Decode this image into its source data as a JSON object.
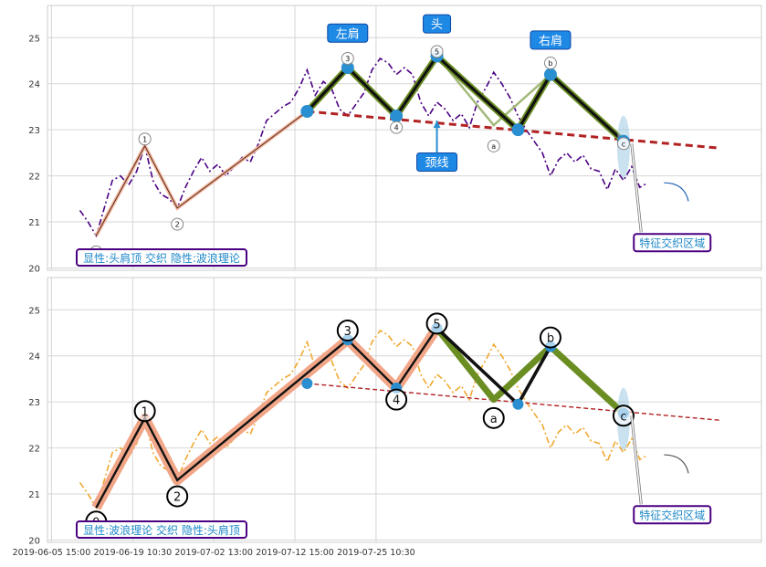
{
  "chart_data": [
    {
      "type": "line",
      "panel": "top",
      "ylim": [
        19.95,
        25.7
      ],
      "yticks": [
        20,
        21,
        22,
        23,
        24,
        25
      ],
      "grid": true,
      "price_series": {
        "style": "dash-dot",
        "color": "#4B0082",
        "points": [
          [
            0,
            21.25
          ],
          [
            1,
            21.0
          ],
          [
            2,
            20.7
          ],
          [
            3,
            21.3
          ],
          [
            4,
            21.9
          ],
          [
            5,
            22.0
          ],
          [
            6,
            21.8
          ],
          [
            7,
            22.1
          ],
          [
            8,
            22.65
          ],
          [
            9,
            21.9
          ],
          [
            10,
            21.6
          ],
          [
            11,
            21.5
          ],
          [
            12,
            21.3
          ],
          [
            13,
            21.75
          ],
          [
            14,
            22.1
          ],
          [
            15,
            22.4
          ],
          [
            16,
            22.1
          ],
          [
            17,
            22.25
          ],
          [
            18,
            22.0
          ],
          [
            19,
            22.2
          ],
          [
            20,
            22.4
          ],
          [
            21,
            22.3
          ],
          [
            22,
            22.7
          ],
          [
            23,
            23.2
          ],
          [
            24,
            23.35
          ],
          [
            25,
            23.5
          ],
          [
            26,
            23.6
          ],
          [
            27,
            23.9
          ],
          [
            28,
            24.3
          ],
          [
            29,
            23.75
          ],
          [
            30,
            24.05
          ],
          [
            31,
            23.9
          ],
          [
            32,
            23.45
          ],
          [
            33,
            23.3
          ],
          [
            34,
            23.55
          ],
          [
            35,
            23.8
          ],
          [
            36,
            24.3
          ],
          [
            37,
            24.55
          ],
          [
            38,
            24.45
          ],
          [
            39,
            24.2
          ],
          [
            40,
            24.35
          ],
          [
            41,
            24.2
          ],
          [
            42,
            23.6
          ],
          [
            43,
            23.3
          ],
          [
            44,
            23.6
          ],
          [
            45,
            23.45
          ],
          [
            46,
            23.2
          ],
          [
            47,
            23.35
          ],
          [
            48,
            23.05
          ],
          [
            49,
            23.6
          ],
          [
            50,
            23.9
          ],
          [
            51,
            24.25
          ],
          [
            52,
            24.0
          ],
          [
            53,
            23.7
          ],
          [
            54,
            23.3
          ],
          [
            55,
            23.0
          ],
          [
            56,
            22.75
          ],
          [
            57,
            22.5
          ],
          [
            58,
            22.0
          ],
          [
            59,
            22.35
          ],
          [
            60,
            22.5
          ],
          [
            61,
            22.3
          ],
          [
            62,
            22.45
          ],
          [
            63,
            22.15
          ],
          [
            64,
            22.1
          ],
          [
            65,
            21.7
          ],
          [
            66,
            22.15
          ],
          [
            67,
            21.9
          ],
          [
            68,
            22.2
          ],
          [
            69,
            21.75
          ],
          [
            70,
            21.85
          ]
        ]
      },
      "wave_path": {
        "style": "thin tan band with dark line",
        "points": [
          [
            2,
            20.7
          ],
          [
            8,
            22.65
          ],
          [
            12,
            21.3
          ],
          [
            28,
            23.4
          ]
        ]
      },
      "zigzag_green": [
        [
          28,
          23.4
        ],
        [
          33,
          24.35
        ],
        [
          39,
          23.3
        ],
        [
          44,
          24.6
        ],
        [
          54,
          23.0
        ],
        [
          58,
          24.2
        ],
        [
          67,
          22.75
        ]
      ],
      "zigzag_black": [
        [
          28,
          23.4
        ],
        [
          33,
          24.35
        ],
        [
          39,
          23.3
        ],
        [
          44,
          24.6
        ],
        [
          54,
          23.0
        ],
        [
          58,
          24.2
        ],
        [
          67,
          22.75
        ]
      ],
      "pale_lines": [
        [
          [
            44,
            24.6
          ],
          [
            51,
            23.1
          ],
          [
            58,
            24.2
          ]
        ]
      ],
      "neckline": {
        "from": [
          28,
          23.4
        ],
        "to": [
          79,
          22.6
        ],
        "color": "#B22222"
      },
      "pivot_markers": [
        [
          28,
          23.4
        ],
        [
          33,
          24.35
        ],
        [
          39,
          23.3
        ],
        [
          44,
          24.6
        ],
        [
          54,
          23.0
        ],
        [
          58,
          24.2
        ],
        [
          67,
          22.75
        ]
      ],
      "point_labels": [
        {
          "text": "0",
          "at": [
            2,
            20.35
          ]
        },
        {
          "text": "1",
          "at": [
            8,
            22.8
          ]
        },
        {
          "text": "2",
          "at": [
            12,
            20.95
          ]
        },
        {
          "text": "3",
          "at": [
            33,
            24.55
          ]
        },
        {
          "text": "4",
          "at": [
            39,
            23.05
          ]
        },
        {
          "text": "5",
          "at": [
            44,
            24.7
          ]
        },
        {
          "text": "a",
          "at": [
            51,
            22.65
          ]
        },
        {
          "text": "b",
          "at": [
            58,
            24.45
          ]
        },
        {
          "text": "c",
          "at": [
            67,
            22.7
          ]
        }
      ],
      "annotations": [
        {
          "text": "左肩",
          "at": [
            33,
            25.1
          ],
          "bg": "#1E88E5"
        },
        {
          "text": "头",
          "at": [
            44,
            25.3
          ],
          "bg": "#1E88E5"
        },
        {
          "text": "右肩",
          "at": [
            58,
            24.95
          ],
          "bg": "#1E88E5"
        },
        {
          "text": "颈线",
          "at": [
            44,
            22.3
          ],
          "bg": "#1E88E5",
          "arrow_to": [
            44,
            23.2
          ]
        },
        {
          "text": "特征交织区域",
          "at": [
            73,
            20.55
          ],
          "arrow_from": [
            68,
            22.7
          ]
        }
      ],
      "caption": "显性:头肩顶 交织 隐性:波浪理论",
      "xtick_labels": []
    },
    {
      "type": "line",
      "panel": "bottom",
      "ylim": [
        19.95,
        25.7
      ],
      "yticks": [
        20,
        21,
        22,
        23,
        24,
        25
      ],
      "grid": true,
      "price_series": {
        "style": "dash-dot",
        "color": "#F0A830",
        "points": [
          [
            0,
            21.25
          ],
          [
            1,
            21.0
          ],
          [
            2,
            20.7
          ],
          [
            3,
            21.3
          ],
          [
            4,
            21.9
          ],
          [
            5,
            22.0
          ],
          [
            6,
            21.8
          ],
          [
            7,
            22.1
          ],
          [
            8,
            22.65
          ],
          [
            9,
            21.9
          ],
          [
            10,
            21.6
          ],
          [
            11,
            21.5
          ],
          [
            12,
            21.3
          ],
          [
            13,
            21.75
          ],
          [
            14,
            22.1
          ],
          [
            15,
            22.4
          ],
          [
            16,
            22.1
          ],
          [
            17,
            22.25
          ],
          [
            18,
            22.0
          ],
          [
            19,
            22.2
          ],
          [
            20,
            22.4
          ],
          [
            21,
            22.3
          ],
          [
            22,
            22.7
          ],
          [
            23,
            23.2
          ],
          [
            24,
            23.35
          ],
          [
            25,
            23.5
          ],
          [
            26,
            23.6
          ],
          [
            27,
            23.9
          ],
          [
            28,
            24.3
          ],
          [
            29,
            23.75
          ],
          [
            30,
            24.05
          ],
          [
            31,
            23.9
          ],
          [
            32,
            23.45
          ],
          [
            33,
            23.3
          ],
          [
            34,
            23.55
          ],
          [
            35,
            23.8
          ],
          [
            36,
            24.3
          ],
          [
            37,
            24.55
          ],
          [
            38,
            24.45
          ],
          [
            39,
            24.2
          ],
          [
            40,
            24.35
          ],
          [
            41,
            24.2
          ],
          [
            42,
            23.6
          ],
          [
            43,
            23.3
          ],
          [
            44,
            23.6
          ],
          [
            45,
            23.45
          ],
          [
            46,
            23.2
          ],
          [
            47,
            23.35
          ],
          [
            48,
            23.05
          ],
          [
            49,
            23.6
          ],
          [
            50,
            23.9
          ],
          [
            51,
            24.25
          ],
          [
            52,
            24.0
          ],
          [
            53,
            23.7
          ],
          [
            54,
            23.3
          ],
          [
            55,
            23.0
          ],
          [
            56,
            22.75
          ],
          [
            57,
            22.5
          ],
          [
            58,
            22.0
          ],
          [
            59,
            22.35
          ],
          [
            60,
            22.5
          ],
          [
            61,
            22.3
          ],
          [
            62,
            22.45
          ],
          [
            63,
            22.15
          ],
          [
            64,
            22.1
          ],
          [
            65,
            21.7
          ],
          [
            66,
            22.15
          ],
          [
            67,
            21.9
          ],
          [
            68,
            22.2
          ],
          [
            69,
            21.75
          ],
          [
            70,
            21.85
          ]
        ]
      },
      "wave_path": {
        "style": "thick salmon band with black line",
        "points": [
          [
            2,
            20.7
          ],
          [
            8,
            22.65
          ],
          [
            12,
            21.3
          ],
          [
            33,
            24.35
          ],
          [
            39,
            23.3
          ],
          [
            44,
            24.6
          ]
        ]
      },
      "zigzag_green": [
        [
          44,
          24.6
        ],
        [
          51,
          23.05
        ],
        [
          58,
          24.2
        ],
        [
          67,
          22.75
        ]
      ],
      "zigzag_black": [
        [
          44,
          24.6
        ],
        [
          54,
          22.95
        ],
        [
          58,
          24.2
        ]
      ],
      "pale_lines": [],
      "neckline": {
        "from": [
          28,
          23.4
        ],
        "to": [
          79,
          22.6
        ],
        "color": "#B22222"
      },
      "pivot_markers": [
        [
          28,
          23.4
        ],
        [
          33,
          24.35
        ],
        [
          39,
          23.3
        ],
        [
          44,
          24.6
        ],
        [
          54,
          22.95
        ],
        [
          58,
          24.2
        ],
        [
          67,
          22.75
        ]
      ],
      "point_labels": [
        {
          "text": "0",
          "at": [
            2,
            20.4
          ]
        },
        {
          "text": "1",
          "at": [
            8,
            22.8
          ]
        },
        {
          "text": "2",
          "at": [
            12,
            20.95
          ]
        },
        {
          "text": "3",
          "at": [
            33,
            24.55
          ]
        },
        {
          "text": "4",
          "at": [
            39,
            23.05
          ]
        },
        {
          "text": "5",
          "at": [
            44,
            24.7
          ]
        },
        {
          "text": "a",
          "at": [
            51,
            22.65
          ]
        },
        {
          "text": "b",
          "at": [
            58,
            24.4
          ]
        },
        {
          "text": "c",
          "at": [
            67,
            22.7
          ]
        }
      ],
      "annotations": [
        {
          "text": "特征交织区域",
          "at": [
            73,
            20.55
          ],
          "arrow_from": [
            68,
            22.7
          ]
        }
      ],
      "caption": "显性:波浪理论 交织 隐性:头肩顶",
      "xtick_labels": [
        "2019-06-05 15:00",
        "2019-06-19 10:30",
        "2019-07-02 13:00",
        "2019-07-12 15:00",
        "2019-07-25 10:30"
      ]
    }
  ]
}
